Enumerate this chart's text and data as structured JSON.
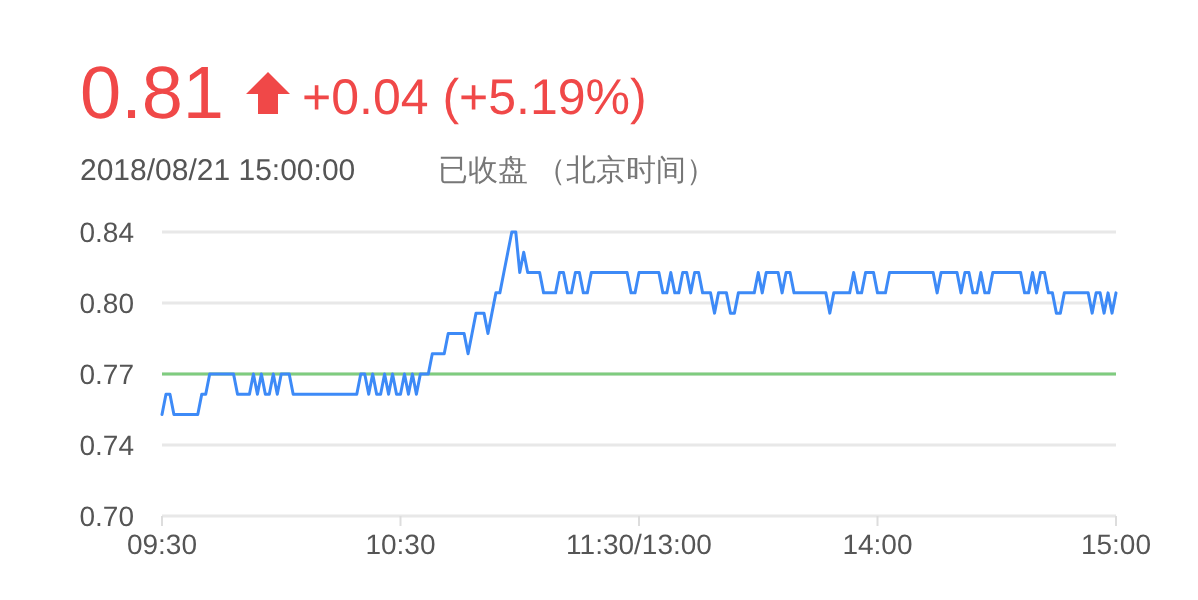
{
  "chart_data": {
    "type": "line",
    "title": "0.81",
    "subtitle": "2018/08/21 15:00:00",
    "annotations": [
      "+0.04 (+5.19%)",
      "已收盘 （北京时间）"
    ],
    "categories": [
      "09:30",
      null,
      null,
      null,
      null,
      null,
      null,
      null,
      null,
      null,
      null,
      null,
      null,
      null,
      null,
      null,
      null,
      null,
      null,
      null,
      null,
      null,
      null,
      null,
      null,
      null,
      null,
      null,
      null,
      null,
      null,
      null,
      null,
      null,
      null,
      null,
      null,
      null,
      null,
      null,
      null,
      null,
      null,
      null,
      null,
      null,
      null,
      null,
      null,
      null,
      null,
      null,
      null,
      null,
      null,
      null,
      null,
      null,
      null,
      null,
      "10:30",
      null,
      null,
      null,
      null,
      null,
      null,
      null,
      null,
      null,
      null,
      null,
      null,
      null,
      null,
      null,
      null,
      null,
      null,
      null,
      null,
      null,
      null,
      null,
      null,
      null,
      null,
      null,
      null,
      null,
      null,
      null,
      null,
      null,
      null,
      null,
      null,
      null,
      null,
      null,
      null,
      null,
      null,
      null,
      null,
      null,
      null,
      null,
      null,
      null,
      null,
      null,
      null,
      null,
      null,
      null,
      null,
      null,
      null,
      null,
      "11:30/13:00",
      null,
      null,
      null,
      null,
      null,
      null,
      null,
      null,
      null,
      null,
      null,
      null,
      null,
      null,
      null,
      null,
      null,
      null,
      null,
      null,
      null,
      null,
      null,
      null,
      null,
      null,
      null,
      null,
      null,
      null,
      null,
      null,
      null,
      null,
      null,
      null,
      null,
      null,
      null,
      null,
      null,
      null,
      null,
      null,
      null,
      null,
      null,
      null,
      null,
      null,
      null,
      null,
      null,
      null,
      null,
      null,
      null,
      null,
      null,
      "14:00",
      null,
      null,
      null,
      null,
      null,
      null,
      null,
      null,
      null,
      null,
      null,
      null,
      null,
      null,
      null,
      null,
      null,
      null,
      null,
      null,
      null,
      null,
      null,
      null,
      null,
      null,
      null,
      null,
      null,
      null,
      null,
      null,
      null,
      null,
      null,
      null,
      null,
      null,
      null,
      null,
      null,
      null,
      null,
      null,
      null,
      null,
      null,
      null,
      null,
      null,
      null,
      null,
      null,
      null,
      null,
      null,
      null,
      null,
      null,
      "15:00"
    ],
    "ylim": [
      0.7,
      0.84
    ],
    "yticks": [
      {
        "value": 0.7,
        "label": "0.70"
      },
      {
        "value": 0.735,
        "label": "0.74"
      },
      {
        "value": 0.77,
        "label": "0.77"
      },
      {
        "value": 0.805,
        "label": "0.80"
      },
      {
        "value": 0.84,
        "label": "0.84"
      }
    ],
    "grid": "y",
    "marker": "none",
    "line_style": "solid",
    "ref_lines": [
      {
        "axis": "y",
        "value": 0.77,
        "color": "#7fcc7f"
      }
    ],
    "series": [
      {
        "color": "#3d8af7",
        "values": [
          0.75,
          0.76,
          0.76,
          0.75,
          0.75,
          0.75,
          0.75,
          0.75,
          0.75,
          0.75,
          0.76,
          0.76,
          0.77,
          0.77,
          0.77,
          0.77,
          0.77,
          0.77,
          0.77,
          0.76,
          0.76,
          0.76,
          0.76,
          0.77,
          0.76,
          0.77,
          0.76,
          0.76,
          0.77,
          0.76,
          0.77,
          0.77,
          0.77,
          0.76,
          0.76,
          0.76,
          0.76,
          0.76,
          0.76,
          0.76,
          0.76,
          0.76,
          0.76,
          0.76,
          0.76,
          0.76,
          0.76,
          0.76,
          0.76,
          0.76,
          0.77,
          0.77,
          0.76,
          0.77,
          0.76,
          0.76,
          0.77,
          0.76,
          0.77,
          0.76,
          0.76,
          0.77,
          0.76,
          0.77,
          0.76,
          0.77,
          0.77,
          0.77,
          0.78,
          0.78,
          0.78,
          0.78,
          0.79,
          0.79,
          0.79,
          0.79,
          0.79,
          0.78,
          0.79,
          0.8,
          0.8,
          0.8,
          0.79,
          0.8,
          0.81,
          0.81,
          0.82,
          0.83,
          0.84,
          0.84,
          0.82,
          0.83,
          0.82,
          0.82,
          0.82,
          0.82,
          0.81,
          0.81,
          0.81,
          0.81,
          0.82,
          0.82,
          0.81,
          0.81,
          0.82,
          0.82,
          0.81,
          0.81,
          0.82,
          0.82,
          0.82,
          0.82,
          0.82,
          0.82,
          0.82,
          0.82,
          0.82,
          0.82,
          0.81,
          0.81,
          0.82,
          0.82,
          0.82,
          0.82,
          0.82,
          0.82,
          0.81,
          0.81,
          0.82,
          0.81,
          0.81,
          0.82,
          0.82,
          0.81,
          0.82,
          0.82,
          0.81,
          0.81,
          0.81,
          0.8,
          0.81,
          0.81,
          0.81,
          0.8,
          0.8,
          0.81,
          0.81,
          0.81,
          0.81,
          0.81,
          0.82,
          0.81,
          0.82,
          0.82,
          0.82,
          0.82,
          0.81,
          0.82,
          0.82,
          0.81,
          0.81,
          0.81,
          0.81,
          0.81,
          0.81,
          0.81,
          0.81,
          0.81,
          0.8,
          0.81,
          0.81,
          0.81,
          0.81,
          0.81,
          0.82,
          0.81,
          0.81,
          0.82,
          0.82,
          0.82,
          0.81,
          0.81,
          0.81,
          0.82,
          0.82,
          0.82,
          0.82,
          0.82,
          0.82,
          0.82,
          0.82,
          0.82,
          0.82,
          0.82,
          0.82,
          0.81,
          0.82,
          0.82,
          0.82,
          0.82,
          0.82,
          0.81,
          0.82,
          0.82,
          0.81,
          0.81,
          0.82,
          0.81,
          0.81,
          0.82,
          0.82,
          0.82,
          0.82,
          0.82,
          0.82,
          0.82,
          0.82,
          0.81,
          0.81,
          0.82,
          0.81,
          0.82,
          0.82,
          0.81,
          0.81,
          0.8,
          0.8,
          0.81,
          0.81,
          0.81,
          0.81,
          0.81,
          0.81,
          0.81,
          0.8,
          0.81,
          0.81,
          0.8,
          0.81,
          0.8,
          0.81
        ]
      }
    ]
  }
}
